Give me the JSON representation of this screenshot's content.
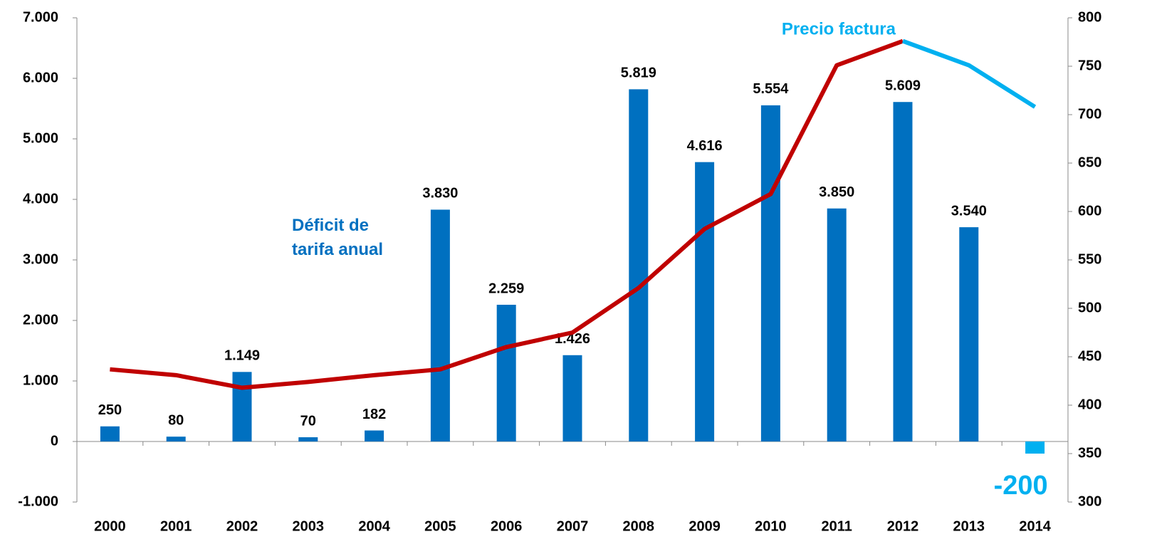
{
  "chart_data": {
    "type": "bar",
    "categories": [
      "2000",
      "2001",
      "2002",
      "2003",
      "2004",
      "2005",
      "2006",
      "2007",
      "2008",
      "2009",
      "2010",
      "2011",
      "2012",
      "2013",
      "2014"
    ],
    "series": [
      {
        "name": "Déficit de tarifa anual",
        "type": "bar",
        "color": "#0070c0",
        "colors": [
          "#0070c0",
          "#0070c0",
          "#0070c0",
          "#0070c0",
          "#0070c0",
          "#0070c0",
          "#0070c0",
          "#0070c0",
          "#0070c0",
          "#0070c0",
          "#0070c0",
          "#0070c0",
          "#0070c0",
          "#0070c0",
          "#00b0f0"
        ],
        "values": [
          250,
          80,
          1149,
          70,
          182,
          3830,
          2259,
          1426,
          5819,
          4616,
          5554,
          3850,
          5609,
          3540,
          -200
        ],
        "value_labels": [
          "250",
          "80",
          "1.149",
          "70",
          "182",
          "3.830",
          "2.259",
          "1.426",
          "5.819",
          "4.616",
          "5.554",
          "3.850",
          "5.609",
          "3.540",
          "-200"
        ]
      },
      {
        "type": "line",
        "axis": "y2",
        "color": "#c00000",
        "values": [
          437,
          431,
          418,
          424,
          431,
          437,
          460,
          475,
          521,
          582,
          618,
          751,
          776,
          null,
          null
        ]
      },
      {
        "name": "Precio factura",
        "type": "line",
        "axis": "y2",
        "color": "#00b0f0",
        "values": [
          null,
          null,
          null,
          null,
          null,
          null,
          null,
          null,
          null,
          null,
          null,
          null,
          776,
          751,
          708
        ]
      }
    ],
    "ylim": [
      -1000,
      7000
    ],
    "yticks": [
      {
        "value": -1000,
        "label": "-1.000"
      },
      0,
      {
        "value": 1000,
        "label": "1.000"
      },
      {
        "value": 2000,
        "label": "2.000"
      },
      {
        "value": 3000,
        "label": "3.000"
      },
      {
        "value": 4000,
        "label": "4.000"
      },
      {
        "value": 5000,
        "label": "5.000"
      },
      {
        "value": 6000,
        "label": "6.000"
      },
      {
        "value": 7000,
        "label": "7.000"
      }
    ],
    "y2lim": [
      300,
      800
    ],
    "y2ticks": [
      300,
      350,
      400,
      450,
      500,
      550,
      600,
      650,
      700,
      750,
      800
    ]
  }
}
